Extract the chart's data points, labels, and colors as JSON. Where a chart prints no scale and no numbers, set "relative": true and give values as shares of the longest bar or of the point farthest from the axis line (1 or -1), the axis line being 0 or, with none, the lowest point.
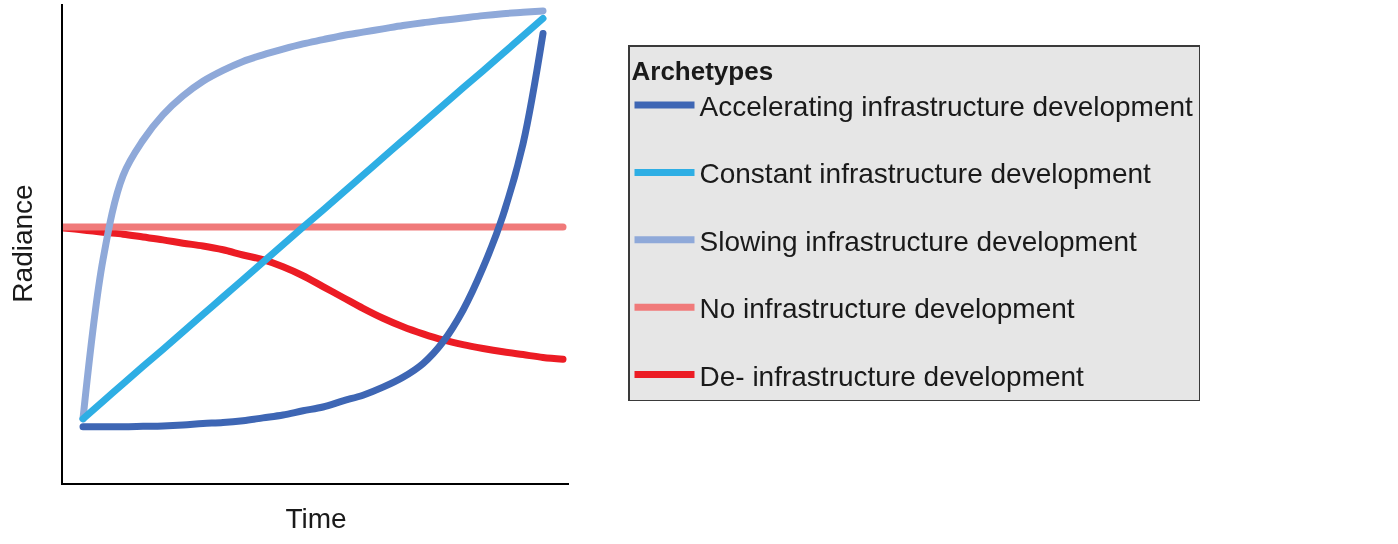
{
  "chart_data": {
    "type": "line",
    "xlabel": "Time",
    "ylabel": "Radiance",
    "legend_title": "Archetypes",
    "relative": true,
    "tick_labels": false,
    "legend": "right",
    "line_style": "solid",
    "categories": [
      null,
      null,
      null,
      null,
      null,
      null,
      null,
      null,
      null,
      null,
      null,
      null,
      null,
      null,
      null,
      null,
      null,
      null,
      null,
      null,
      null,
      null,
      null,
      null,
      null,
      null
    ],
    "series": [
      {
        "name": "Accelerating infrastructure development",
        "color": "#3e66b4",
        "values": [
          null,
          0.119,
          0.119,
          0.119,
          0.12,
          0.121,
          0.123,
          0.126,
          0.128,
          0.132,
          0.138,
          0.144,
          0.153,
          0.161,
          0.174,
          0.186,
          0.203,
          0.224,
          0.253,
          0.299,
          0.366,
          0.456,
          0.567,
          0.718,
          0.952,
          null
        ]
      },
      {
        "name": "Constant infrastructure development",
        "color": "#2eaee4",
        "values": [
          null,
          0.136,
          0.173,
          0.21,
          0.247,
          0.283,
          0.32,
          0.357,
          0.394,
          0.431,
          0.468,
          0.505,
          0.542,
          0.578,
          0.615,
          0.652,
          0.689,
          0.726,
          0.763,
          0.8,
          0.837,
          0.873,
          0.91,
          0.947,
          0.984,
          null
        ]
      },
      {
        "name": "Slowing infrastructure development",
        "color": "#8fa9d9",
        "values": [
          null,
          0.136,
          0.473,
          0.651,
          0.726,
          0.78,
          0.82,
          0.851,
          0.874,
          0.893,
          0.907,
          0.919,
          0.93,
          0.939,
          0.948,
          0.955,
          0.962,
          0.969,
          0.975,
          0.98,
          0.985,
          0.99,
          0.994,
          0.997,
          1.0,
          null
        ]
      },
      {
        "name": "No infrastructure development",
        "color": "#f07a7a",
        "values": [
          0.542,
          0.542,
          0.542,
          0.542,
          0.542,
          0.542,
          0.542,
          0.542,
          0.542,
          0.542,
          0.542,
          0.542,
          0.542,
          0.542,
          0.542,
          0.542,
          0.542,
          0.542,
          0.542,
          0.542,
          0.542,
          0.542,
          0.542,
          0.542,
          0.542,
          0.542
        ]
      },
      {
        "name": "De- infrastructure development",
        "color": "#ec1c24",
        "values": [
          0.54,
          0.536,
          0.531,
          0.527,
          0.521,
          0.515,
          0.508,
          0.502,
          0.494,
          0.483,
          0.473,
          0.458,
          0.439,
          0.416,
          0.393,
          0.37,
          0.349,
          0.331,
          0.316,
          0.303,
          0.293,
          0.285,
          0.278,
          0.272,
          0.266,
          0.262
        ]
      }
    ]
  }
}
